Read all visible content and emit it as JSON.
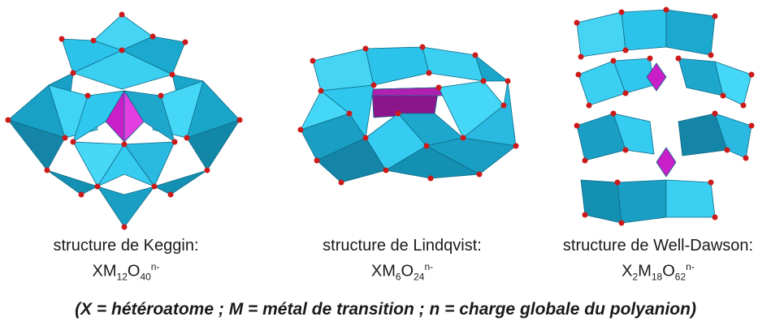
{
  "structures": [
    {
      "caption": "structure de Keggin:",
      "formula": {
        "base": "XM",
        "n1": "12",
        "mid": "O",
        "n2": "40",
        "charge": "n-"
      }
    },
    {
      "caption": "structure de Lindqvist:",
      "formula": {
        "base": "XM",
        "n1": "6",
        "mid": "O",
        "n2": "24",
        "charge": "n-"
      }
    },
    {
      "caption": "structure de Well-Dawson:",
      "formula": {
        "pre": "X",
        "pre_n": "2",
        "base": "M",
        "n1": "18",
        "mid": "O",
        "n2": "62",
        "charge": "n-"
      }
    }
  ],
  "legend": "(X = hétéroatome ; M = métal de transition ; n = charge globale du polyanion)",
  "colors": {
    "octahedron": "#2ec9ee",
    "octahedron_dark": "#1696b8",
    "heteroatom": "#c81fc8",
    "oxygen": "#d01818"
  }
}
